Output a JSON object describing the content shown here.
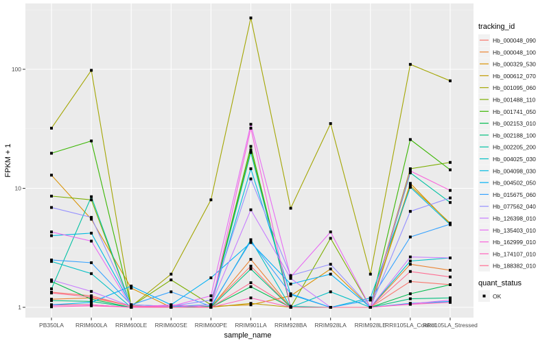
{
  "chart_data": {
    "type": "line",
    "title": "",
    "xlabel": "sample_name",
    "ylabel": "FPKM + 1",
    "yscale": "log10",
    "ylim": [
      0.93,
      330
    ],
    "yticks": [
      1,
      10,
      100
    ],
    "ytick_labels": [
      "1",
      "10",
      "100"
    ],
    "grid": true,
    "categories": [
      "PB350LA",
      "RRIM600LA",
      "RRIM600LE",
      "RRIM600SE",
      "RRIM600PE",
      "RRIM901LA",
      "RRIM928BA",
      "RRIM928LA",
      "RRIM928LE",
      "RRII105LA_Control",
      "RRII105LA_Stressed"
    ],
    "legend": {
      "title": "tracking_id",
      "placement": "right"
    },
    "shape_legend": {
      "title": "quant_status",
      "entries": [
        "OK"
      ]
    },
    "series": [
      {
        "name": "Hb_000048_090",
        "color": "#F8766D",
        "values": [
          1.34,
          1.25,
          1.02,
          1.0,
          1.02,
          2.22,
          1.0,
          1.0,
          1.0,
          1.65,
          1.55
        ]
      },
      {
        "name": "Hb_000048_100",
        "color": "#EA8331",
        "values": [
          1.17,
          1.2,
          1.03,
          1.0,
          1.0,
          2.53,
          1.0,
          1.0,
          1.0,
          2.3,
          2.05
        ]
      },
      {
        "name": "Hb_000329_530",
        "color": "#D89000",
        "values": [
          12.9,
          5.5,
          1.45,
          1.0,
          1.02,
          1.05,
          1.25,
          2.1,
          1.0,
          11.0,
          5.0
        ]
      },
      {
        "name": "Hb_000612_070",
        "color": "#C09B00",
        "values": [
          1.05,
          1.05,
          1.0,
          1.0,
          1.0,
          1.08,
          1.0,
          1.0,
          1.0,
          10.5,
          5.1
        ]
      },
      {
        "name": "Hb_001095_060",
        "color": "#A3A500",
        "values": [
          32,
          98,
          1.02,
          1.9,
          8.0,
          270,
          6.8,
          35,
          1.9,
          110,
          80
        ]
      },
      {
        "name": "Hb_001488_110",
        "color": "#7CAE00",
        "values": [
          8.6,
          8.0,
          1.02,
          1.7,
          1.05,
          21,
          1.0,
          3.8,
          1.0,
          14.6,
          16.5
        ]
      },
      {
        "name": "Hb_001741_050",
        "color": "#39B600",
        "values": [
          19.7,
          25,
          1.02,
          1.0,
          1.05,
          22.5,
          1.0,
          1.0,
          1.0,
          25.7,
          14.3
        ]
      },
      {
        "name": "Hb_002153_010",
        "color": "#00BB4E",
        "values": [
          1.65,
          1.17,
          1.0,
          1.0,
          1.0,
          1.49,
          1.0,
          1.0,
          1.0,
          1.3,
          1.55
        ]
      },
      {
        "name": "Hb_002188_100",
        "color": "#00BF7D",
        "values": [
          1.14,
          1.12,
          1.0,
          1.0,
          1.0,
          2.1,
          1.0,
          1.0,
          1.0,
          1.18,
          1.2
        ]
      },
      {
        "name": "Hb_002205_200",
        "color": "#00C1A3",
        "values": [
          1.43,
          8.5,
          1.02,
          1.0,
          1.02,
          20,
          1.02,
          1.0,
          1.0,
          13.5,
          7.6
        ]
      },
      {
        "name": "Hb_004025_030",
        "color": "#00BFC4",
        "values": [
          2.43,
          1.92,
          1.0,
          1.0,
          1.0,
          3.7,
          1.0,
          1.35,
          1.0,
          2.45,
          2.6
        ]
      },
      {
        "name": "Hb_004098_030",
        "color": "#00BAE0",
        "values": [
          4.0,
          4.2,
          1.05,
          1.02,
          1.05,
          14.6,
          1.28,
          1.0,
          1.2,
          10.2,
          4.95
        ]
      },
      {
        "name": "Hb_004502_050",
        "color": "#00B0F6",
        "values": [
          1.05,
          1.1,
          1.51,
          1.05,
          1.77,
          3.5,
          1.57,
          1.9,
          1.0,
          1.08,
          1.12
        ]
      },
      {
        "name": "Hb_015675_060",
        "color": "#35A2FF",
        "values": [
          2.5,
          2.37,
          1.05,
          1.35,
          1.02,
          3.6,
          1.3,
          1.0,
          1.15,
          3.9,
          5.0
        ]
      },
      {
        "name": "Hb_077562_040",
        "color": "#9590FF",
        "values": [
          6.9,
          5.7,
          1.05,
          1.02,
          1.15,
          12,
          1.85,
          2.3,
          1.0,
          6.4,
          8.3
        ]
      },
      {
        "name": "Hb_126398_010",
        "color": "#C77CFF",
        "values": [
          1.7,
          1.36,
          1.02,
          1.0,
          1.05,
          6.6,
          1.75,
          1.0,
          1.0,
          2.65,
          2.6
        ]
      },
      {
        "name": "Hb_135403_010",
        "color": "#E76BF3",
        "values": [
          4.3,
          3.6,
          1.02,
          1.02,
          1.25,
          34.5,
          1.8,
          4.3,
          1.0,
          1.07,
          1.15
        ]
      },
      {
        "name": "Hb_162999_010",
        "color": "#FA62DB",
        "values": [
          1.04,
          1.05,
          1.0,
          1.05,
          1.0,
          32,
          1.0,
          1.0,
          1.0,
          14.0,
          9.6
        ]
      },
      {
        "name": "Hb_174107_010",
        "color": "#FF62BC",
        "values": [
          1.01,
          1.03,
          1.0,
          1.0,
          1.0,
          1.2,
          1.0,
          1.0,
          1.0,
          1.06,
          1.1
        ]
      },
      {
        "name": "Hb_188382_010",
        "color": "#FF6C91",
        "values": [
          1.32,
          1.22,
          1.02,
          1.0,
          1.0,
          1.61,
          1.0,
          1.0,
          1.0,
          2.0,
          1.8
        ]
      }
    ]
  }
}
